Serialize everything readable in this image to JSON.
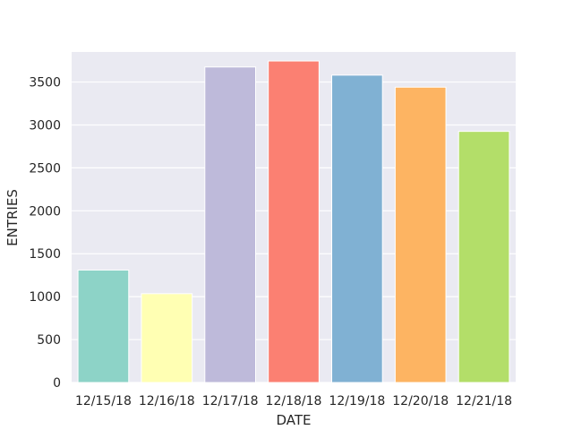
{
  "chart_data": {
    "type": "bar",
    "categories": [
      "12/15/18",
      "12/16/18",
      "12/17/18",
      "12/18/18",
      "12/19/18",
      "12/20/18",
      "12/21/18"
    ],
    "values": [
      1310,
      1035,
      3675,
      3745,
      3580,
      3440,
      2925
    ],
    "colors": [
      "#8dd3c7",
      "#ffffb3",
      "#bebada",
      "#fb8072",
      "#80b1d3",
      "#fdb462",
      "#b3de69"
    ],
    "xlabel": "DATE",
    "ylabel": "ENTRIES",
    "ylim": [
      0,
      3850
    ],
    "yticks": [
      0,
      500,
      1000,
      1500,
      2000,
      2500,
      3000,
      3500
    ],
    "grid": true,
    "background": "#eaeaf2"
  }
}
